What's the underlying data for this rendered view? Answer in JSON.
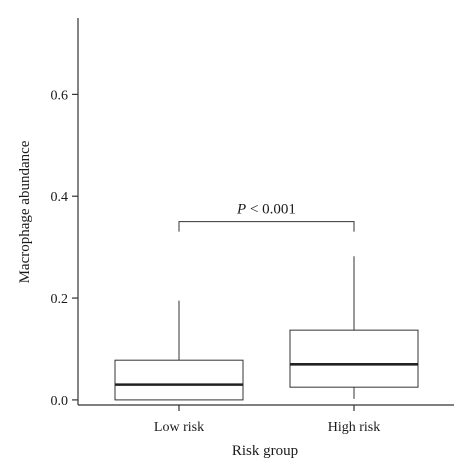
{
  "chart_data": {
    "type": "box",
    "xlabel": "Risk group",
    "ylabel": "Macrophage abundance",
    "ylim": [
      -0.01,
      0.75
    ],
    "yticks": [
      0.0,
      0.2,
      0.4,
      0.6
    ],
    "ytick_labels": [
      "0.0",
      "0.2",
      "0.4",
      "0.6"
    ],
    "categories": [
      "Low risk",
      "High risk"
    ],
    "boxes": [
      {
        "category": "Low risk",
        "whisker_low": 0.0,
        "q1": 0.0,
        "median": 0.03,
        "q3": 0.078,
        "whisker_high": 0.195
      },
      {
        "category": "High risk",
        "whisker_low": 0.002,
        "q1": 0.025,
        "median": 0.07,
        "q3": 0.137,
        "whisker_high": 0.282
      }
    ],
    "annotation": {
      "italic": "P",
      "rest": " < 0.001",
      "y": 0.35
    },
    "grid": false,
    "colors": {
      "box_edge": "#333333",
      "box_fill": "#ffffff",
      "median": "#222222"
    }
  }
}
